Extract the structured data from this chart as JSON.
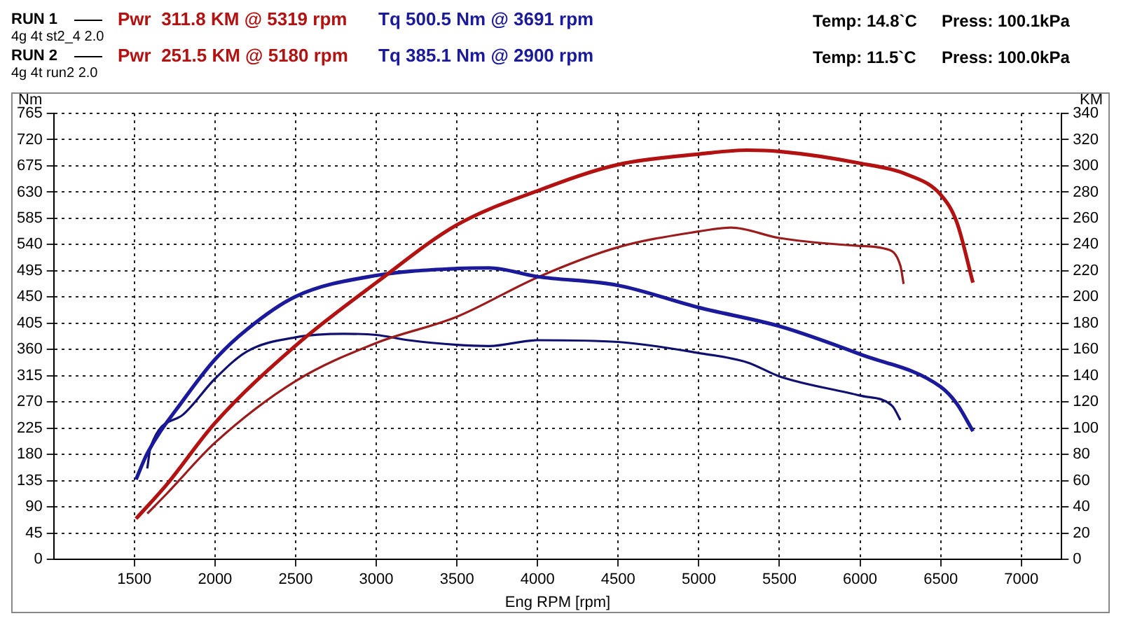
{
  "chart_data": {
    "type": "line",
    "xlabel": "Eng RPM [rpm]",
    "ylabel": "Nm",
    "y2label": "KM",
    "annotations": [
      "RUN 1",
      "Pwr  311.8 KM @ 5319 rpm",
      "Tq 500.5 Nm @ 3691 rpm",
      "Temp: 14.8`C",
      "Press: 100.1kPa",
      "4g 4t st2_4 2.0",
      "RUN 2",
      "Pwr  251.5 KM @ 5180 rpm",
      "Tq 385.1 Nm @ 2900 rpm",
      "Temp: 11.5`C",
      "Press: 100.0kPa",
      "4g 4t run2 2.0"
    ],
    "xlim": [
      1000,
      7250
    ],
    "xticks": [
      1500,
      2000,
      2500,
      3000,
      3500,
      4000,
      4500,
      5000,
      5500,
      6000,
      6500,
      7000
    ],
    "ylim": [
      0,
      765
    ],
    "yticks": [
      0,
      45,
      90,
      135,
      180,
      225,
      270,
      315,
      360,
      405,
      450,
      495,
      540,
      585,
      630,
      675,
      720,
      765
    ],
    "y2lim": [
      0,
      340
    ],
    "y2ticks": [
      0,
      20,
      40,
      60,
      80,
      100,
      120,
      140,
      160,
      180,
      200,
      220,
      240,
      260,
      280,
      300,
      320,
      340
    ],
    "grid": true,
    "legend": false,
    "marker": "none",
    "line_style": "solid",
    "series": [
      {
        "color": "#b31212",
        "axis": "y2",
        "x": [
          1510,
          1700,
          2000,
          2500,
          3000,
          3500,
          4000,
          4500,
          5000,
          5300,
          5500,
          6000,
          6300,
          6500,
          6600,
          6700
        ],
        "values": [
          31,
          57,
          104,
          163,
          211,
          255,
          281,
          301,
          309,
          312,
          311,
          302,
          293,
          278,
          257,
          211
        ]
      },
      {
        "color": "#1a1a9a",
        "axis": "y",
        "x": [
          1510,
          1580,
          1800,
          2000,
          2200,
          2500,
          3000,
          3500,
          3700,
          4000,
          4500,
          5000,
          5500,
          6000,
          6500,
          6600,
          6700
        ],
        "values": [
          137,
          182,
          272,
          343,
          395,
          451,
          487,
          499,
          500,
          485,
          470,
          432,
          400,
          352,
          296,
          267,
          220
        ]
      },
      {
        "color": "#9a1c1c",
        "axis": "y2",
        "x": [
          1580,
          1700,
          2000,
          2500,
          3000,
          3500,
          4000,
          4500,
          5000,
          5200,
          5500,
          6000,
          6150,
          6250,
          6270
        ],
        "values": [
          35,
          50,
          89,
          136,
          165,
          185,
          215,
          238,
          250,
          253,
          245,
          239,
          237,
          224,
          210
        ]
      },
      {
        "color": "#101070",
        "axis": "y",
        "x": [
          1580,
          1600,
          1800,
          2000,
          2200,
          2500,
          2800,
          3000,
          3200,
          3500,
          3700,
          4000,
          4500,
          5000,
          5300,
          5500,
          6000,
          6200,
          6250
        ],
        "values": [
          156,
          192,
          248,
          310,
          357,
          381,
          387,
          385,
          376,
          368,
          366,
          376,
          373,
          354,
          338,
          314,
          281,
          263,
          239
        ]
      }
    ]
  }
}
